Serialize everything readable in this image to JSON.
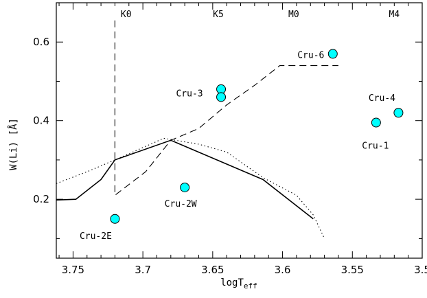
{
  "chart_data": {
    "type": "scatter",
    "xlabel": "logT",
    "xlabel_sub": "eff",
    "ylabel": "W(Li) [Å]",
    "xlim": [
      3.762,
      3.5
    ],
    "ylim": [
      0.05,
      0.7
    ],
    "x_ticks": [
      3.75,
      3.7,
      3.65,
      3.6,
      3.55,
      3.5
    ],
    "x_tick_labels": [
      "3.75",
      "3.7",
      "3.65",
      "3.6",
      "3.55",
      "3.5"
    ],
    "y_ticks": [
      0.2,
      0.4,
      0.6
    ],
    "y_tick_labels": [
      "0.2",
      "0.4",
      "0.6"
    ],
    "spectral_types": [
      {
        "label": "K0",
        "x": 3.712
      },
      {
        "label": "K5",
        "x": 3.646
      },
      {
        "label": "M0",
        "x": 3.592
      },
      {
        "label": "M4",
        "x": 3.52
      }
    ],
    "points": [
      {
        "name": "Cru-1",
        "x": 3.533,
        "y": 0.395
      },
      {
        "name": "Cru-2E",
        "x": 3.72,
        "y": 0.15
      },
      {
        "name": "Cru-2W",
        "x": 3.67,
        "y": 0.23
      },
      {
        "name": "Cru-3",
        "x": 3.644,
        "y": 0.48
      },
      {
        "name": "Cru-3",
        "x": 3.644,
        "y": 0.46
      },
      {
        "name": "Cru-4",
        "x": 3.517,
        "y": 0.42
      },
      {
        "name": "Cru-6",
        "x": 3.564,
        "y": 0.57
      }
    ],
    "point_labels": [
      {
        "text": "Cru-6",
        "x": 3.564,
        "y": 0.57
      },
      {
        "text": "Cru-3",
        "x": 3.644,
        "y": 0.47
      },
      {
        "text": "Cru-4",
        "x": 3.517,
        "y": 0.42
      },
      {
        "text": "Cru-1",
        "x": 3.533,
        "y": 0.395
      },
      {
        "text": "Cru-2W",
        "x": 3.67,
        "y": 0.23
      },
      {
        "text": "Cru-2E",
        "x": 3.72,
        "y": 0.15
      }
    ],
    "curves": [
      {
        "style": "solid",
        "x": [
          3.762,
          3.748,
          3.73,
          3.72,
          3.68,
          3.614,
          3.578
        ],
        "y": [
          0.198,
          0.2,
          0.25,
          0.3,
          0.35,
          0.25,
          0.15
        ]
      },
      {
        "style": "dotted",
        "x": [
          3.762,
          3.74,
          3.72,
          3.685,
          3.66,
          3.64,
          3.614,
          3.59,
          3.578,
          3.57
        ],
        "y": [
          0.24,
          0.27,
          0.3,
          0.355,
          0.34,
          0.32,
          0.255,
          0.21,
          0.16,
          0.1
        ]
      },
      {
        "style": "dashed",
        "x": [
          3.72,
          3.72,
          3.72,
          3.698,
          3.68,
          3.66,
          3.64,
          3.62,
          3.602,
          3.56
        ],
        "y": [
          0.655,
          0.21,
          0.21,
          0.27,
          0.35,
          0.38,
          0.44,
          0.49,
          0.54,
          0.54
        ]
      }
    ],
    "colors": {
      "point_fill": "#00ffff",
      "point_stroke": "#000000",
      "line": "#000000"
    }
  }
}
